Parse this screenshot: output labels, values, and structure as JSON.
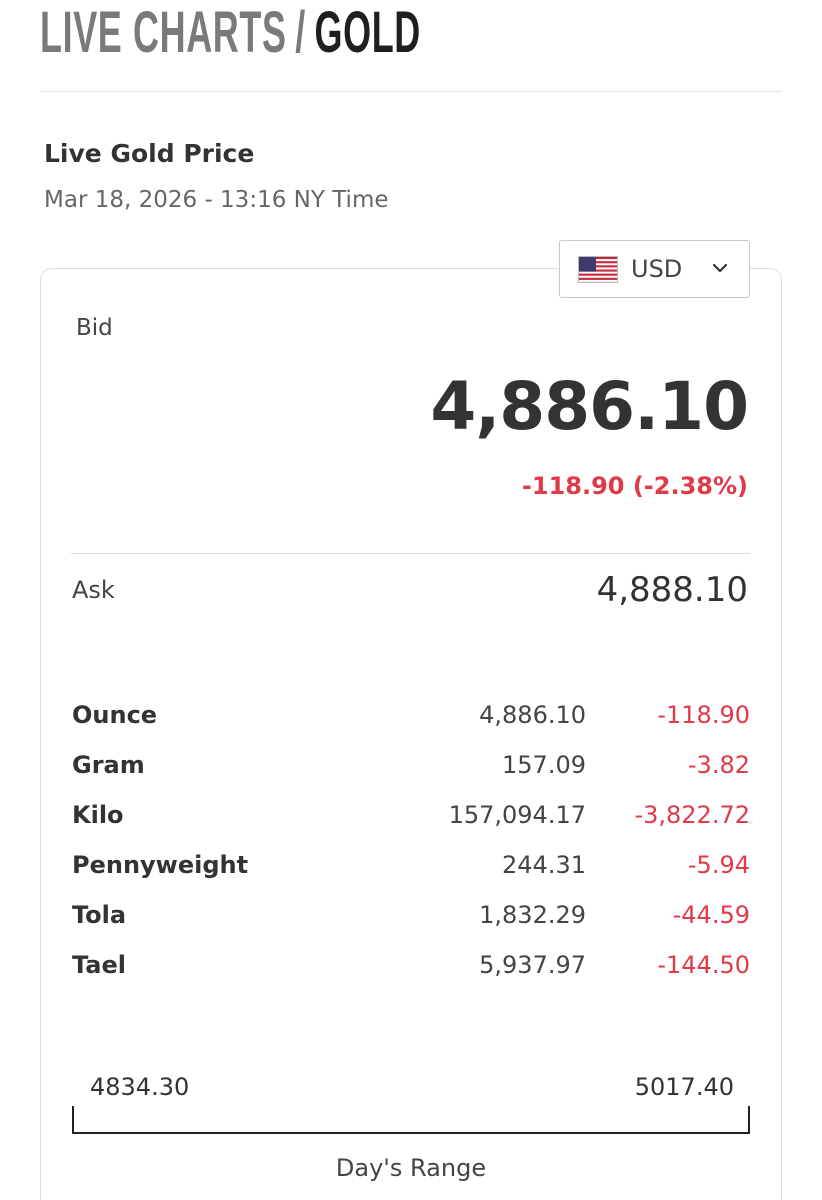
{
  "header": {
    "breadcrumb_root": "LIVE CHARTS",
    "breadcrumb_separator": "/",
    "breadcrumb_current": "GOLD"
  },
  "title": "Live Gold Price",
  "timestamp": "Mar 18, 2026 - 13:16 NY Time",
  "currency": {
    "code": "USD",
    "flag_icon": "us-flag-icon",
    "dropdown_icon": "chevron-down-icon"
  },
  "bid": {
    "label": "Bid",
    "value": "4,886.10",
    "change": "-118.90 (-2.38%)"
  },
  "ask": {
    "label": "Ask",
    "value": "4,888.10"
  },
  "units": [
    {
      "name": "Ounce",
      "price": "4,886.10",
      "change": "-118.90"
    },
    {
      "name": "Gram",
      "price": "157.09",
      "change": "-3.82"
    },
    {
      "name": "Kilo",
      "price": "157,094.17",
      "change": "-3,822.72"
    },
    {
      "name": "Pennyweight",
      "price": "244.31",
      "change": "-5.94"
    },
    {
      "name": "Tola",
      "price": "1,832.29",
      "change": "-44.59"
    },
    {
      "name": "Tael",
      "price": "5,937.97",
      "change": "-144.50"
    }
  ],
  "day_range": {
    "low": "4834.30",
    "high": "5017.40",
    "label": "Day's Range"
  },
  "colors": {
    "negative": "#e03a48",
    "text_dark": "#333333",
    "breadcrumb_muted": "#7a7a7a"
  }
}
